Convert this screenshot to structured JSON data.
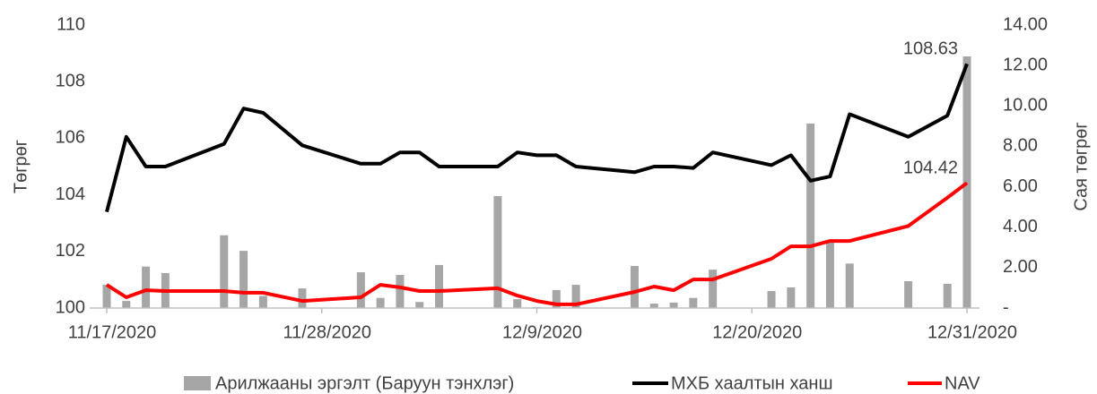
{
  "chart_data": {
    "type": "bar",
    "x": [
      "11/17/2020",
      "11/18/2020",
      "11/19/2020",
      "11/20/2020",
      "11/23/2020",
      "11/24/2020",
      "11/25/2020",
      "11/27/2020",
      "11/30/2020",
      "12/1/2020",
      "12/2/2020",
      "12/3/2020",
      "12/4/2020",
      "12/7/2020",
      "12/8/2020",
      "12/9/2020",
      "12/10/2020",
      "12/11/2020",
      "12/14/2020",
      "12/15/2020",
      "12/16/2020",
      "12/17/2020",
      "12/18/2020",
      "12/21/2020",
      "12/22/2020",
      "12/23/2020",
      "12/24/2020",
      "12/25/2020",
      "12/28/2020",
      "12/30/2020",
      "12/31/2020"
    ],
    "xlim": [
      "11/17/2020",
      "12/31/2020"
    ],
    "xticks": [
      "11/17/2020",
      "11/28/2020",
      "12/9/2020",
      "12/20/2020",
      "12/31/2020"
    ],
    "ylabel": "Төгрөг",
    "y2label": "Сая төгрөг",
    "ylim": [
      100,
      110
    ],
    "yticks": [
      100,
      102,
      104,
      106,
      108,
      110
    ],
    "y2lim": [
      0,
      14
    ],
    "y2ticks": [
      {
        "value": 0,
        "label": "-"
      },
      {
        "value": 2,
        "label": "2.00"
      },
      {
        "value": 4,
        "label": "4.00"
      },
      {
        "value": 6,
        "label": "6.00"
      },
      {
        "value": 8,
        "label": "8.00"
      },
      {
        "value": 10,
        "label": "10.00"
      },
      {
        "value": 12,
        "label": "12.00"
      },
      {
        "value": 14,
        "label": "14.00"
      }
    ],
    "legend": "bottom",
    "series": [
      {
        "name": "Арилжааны эргэлт (Баруун тэнхлэг)",
        "type": "bar",
        "axis": "y2",
        "color": "#a6a6a6",
        "values": [
          1.15,
          0.35,
          2.05,
          1.73,
          3.6,
          2.83,
          0.6,
          0.97,
          1.77,
          0.5,
          1.64,
          0.3,
          2.13,
          5.54,
          0.44,
          0.05,
          0.89,
          1.15,
          2.08,
          0.22,
          0.27,
          0.5,
          1.9,
          0.84,
          1.02,
          9.13,
          3.37,
          2.2,
          1.33,
          1.2,
          12.45
        ]
      },
      {
        "name": "МХБ хаалтын ханш",
        "type": "line",
        "color": "#000000",
        "values": [
          103.4,
          106.05,
          105.0,
          105.0,
          105.8,
          107.05,
          106.9,
          105.75,
          105.1,
          105.1,
          105.5,
          105.5,
          105.0,
          105.0,
          105.5,
          105.4,
          105.4,
          105.0,
          104.8,
          105.0,
          105.0,
          104.95,
          105.5,
          105.05,
          105.4,
          104.5,
          104.65,
          106.85,
          106.05,
          106.8,
          108.63
        ],
        "value_labels": [
          null,
          null,
          null,
          null,
          null,
          null,
          null,
          null,
          null,
          null,
          null,
          null,
          null,
          null,
          null,
          null,
          null,
          null,
          null,
          null,
          null,
          null,
          null,
          null,
          null,
          null,
          null,
          null,
          null,
          null,
          "108.63"
        ]
      },
      {
        "name": "NAV",
        "type": "line",
        "color": "#ff0000",
        "values": [
          100.82,
          100.38,
          100.63,
          100.6,
          100.6,
          100.54,
          100.54,
          100.25,
          100.38,
          100.82,
          100.73,
          100.6,
          100.6,
          100.7,
          100.44,
          100.25,
          100.13,
          100.13,
          100.57,
          100.76,
          100.63,
          101.01,
          101.01,
          101.74,
          102.18,
          102.18,
          102.37,
          102.37,
          102.9,
          103.9,
          104.42
        ],
        "value_labels": [
          null,
          null,
          null,
          null,
          null,
          null,
          null,
          null,
          null,
          null,
          null,
          null,
          null,
          null,
          null,
          null,
          null,
          null,
          null,
          null,
          null,
          null,
          null,
          null,
          null,
          null,
          null,
          null,
          null,
          null,
          "104.42"
        ]
      }
    ]
  }
}
